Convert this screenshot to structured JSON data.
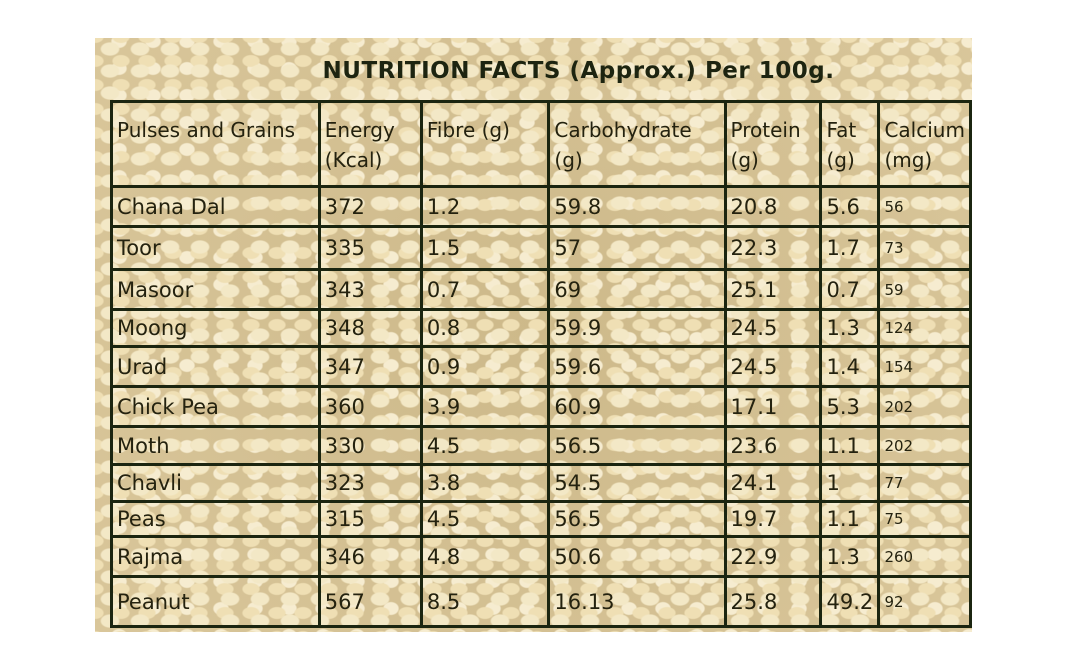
{
  "title": "NUTRITION FACTS (Approx.) Per 100g.",
  "table": {
    "header": [
      "Pulses and Grains",
      "Energy (Kcal)",
      "Fibre (g)",
      "Carbohydrate (g)",
      "Protein (g)",
      "Fat (g)",
      "Calcium (mg)"
    ],
    "rows": [
      [
        "Chana Dal",
        "372",
        "1.2",
        "59.8",
        "20.8",
        "5.6",
        "56"
      ],
      [
        "Toor",
        "335",
        "1.5",
        "57",
        "22.3",
        "1.7",
        "73"
      ],
      [
        "Masoor",
        "343",
        "0.7",
        "69",
        "25.1",
        "0.7",
        "59"
      ],
      [
        "Moong",
        "348",
        "0.8",
        "59.9",
        "24.5",
        "1.3",
        "124"
      ],
      [
        "Urad",
        "347",
        "0.9",
        "59.6",
        "24.5",
        "1.4",
        "154"
      ],
      [
        "Chick Pea",
        "360",
        "3.9",
        "60.9",
        "17.1",
        "5.3",
        "202"
      ],
      [
        "Moth",
        "330",
        "4.5",
        "56.5",
        "23.6",
        "1.1",
        "202"
      ],
      [
        "Chavli",
        "323",
        "3.8",
        "54.5",
        "24.1",
        "1",
        "77"
      ],
      [
        "Peas",
        "315",
        "4.5",
        "56.5",
        "19.7",
        "1.1",
        "75"
      ],
      [
        "Rajma",
        "346",
        "4.8",
        "50.6",
        "22.9",
        "1.3",
        "260"
      ],
      [
        "Peanut",
        "567",
        "8.5",
        "16.13",
        "25.8",
        "49.2",
        "92"
      ]
    ]
  }
}
